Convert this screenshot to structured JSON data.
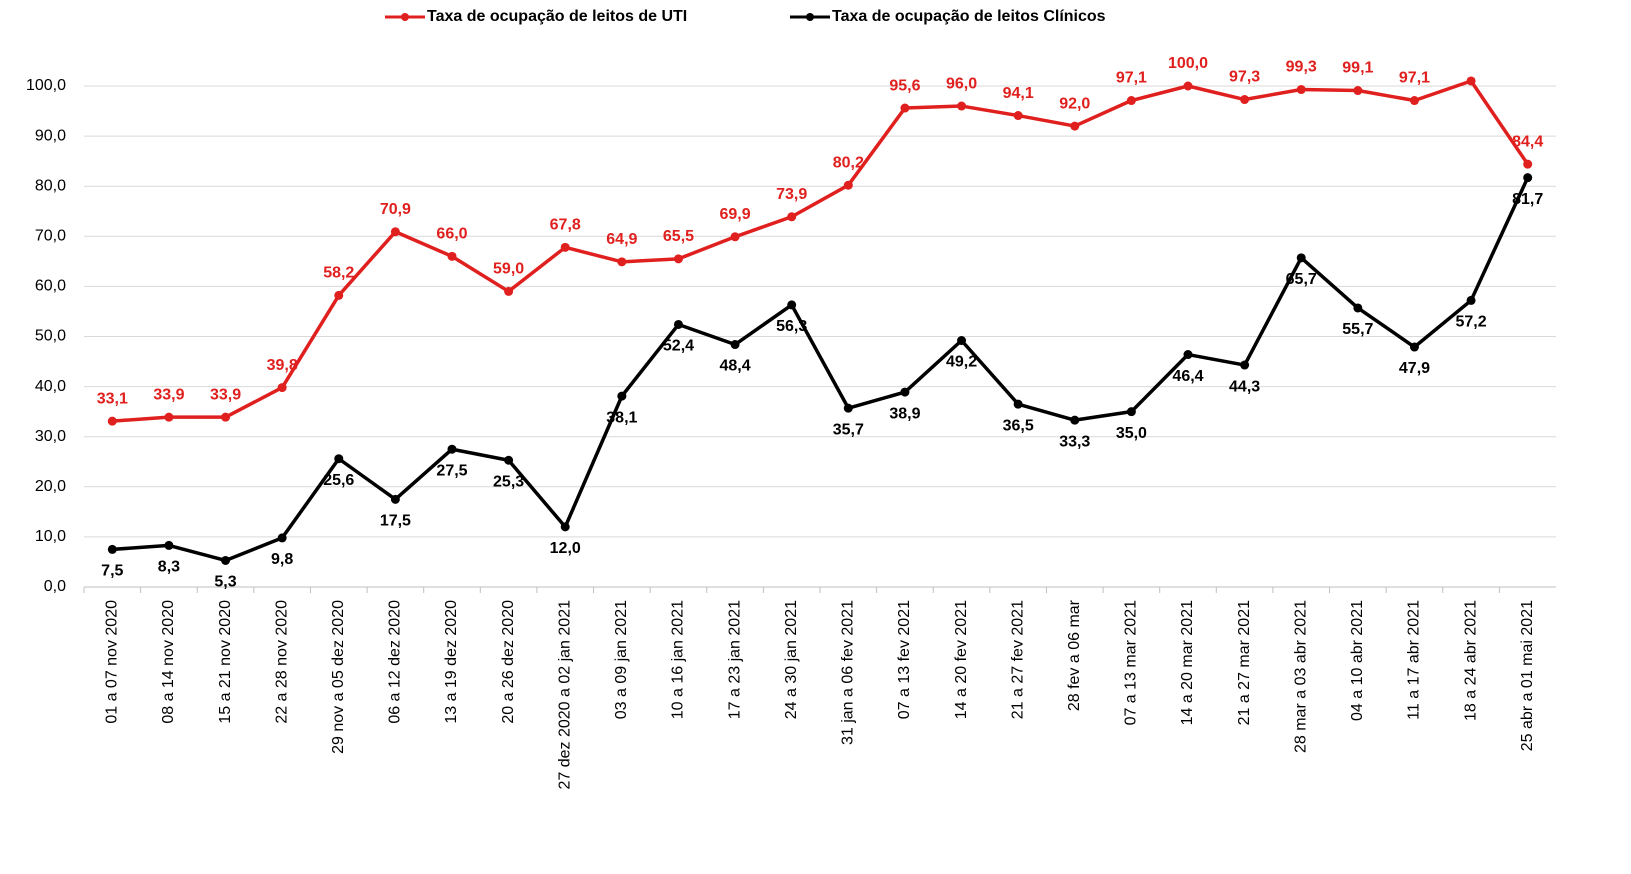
{
  "chart_data": {
    "type": "line",
    "categories": [
      "01 a 07 nov 2020",
      "08 a 14 nov 2020",
      "15 a 21 nov 2020",
      "22 a 28 nov 2020",
      "29 nov a 05 dez 2020",
      "06 a 12 dez 2020",
      "13 a 19 dez 2020",
      "20 a 26 dez 2020",
      "27 dez 2020 a 02 jan 2021",
      "03 a 09 jan 2021",
      "10 a 16 jan 2021",
      "17 a 23 jan 2021",
      "24 a 30 jan 2021",
      "31 jan a 06 fev 2021",
      "07 a 13 fev 2021",
      "14 a 20 fev 2021",
      "21 a 27 fev 2021",
      "28 fev a 06 mar",
      "07 a 13 mar 2021",
      "14 a 20 mar 2021",
      "21 a 27 mar 2021",
      "28 mar a 03 abr 2021",
      "04 a 10 abr 2021",
      "11 a 17 abr 2021",
      "18 a 24 abr 2021",
      "25 abr a 01 mai 2021"
    ],
    "series": [
      {
        "name": "Taxa de ocupação de leitos de UTI",
        "color": "#e0201e",
        "values": [
          33.1,
          33.9,
          33.9,
          39.8,
          58.2,
          70.9,
          66.0,
          59.0,
          67.8,
          64.9,
          65.5,
          69.9,
          73.9,
          80.2,
          95.6,
          96.0,
          94.1,
          92.0,
          97.1,
          100.0,
          97.3,
          99.3,
          99.1,
          97.1,
          101.0,
          84.4
        ],
        "value_labels": [
          "33,1",
          "33,9",
          "33,9",
          "39,8",
          "58,2",
          "70,9",
          "66,0",
          "59,0",
          "67,8",
          "64,9",
          "65,5",
          "69,9",
          "73,9",
          "80,2",
          "95,6",
          "96,0",
          "94,1",
          "92,0",
          "97,1",
          "100,0",
          "97,3",
          "99,3",
          "99,1",
          "97,1",
          null,
          "84,4"
        ]
      },
      {
        "name": "Taxa de ocupação de leitos Clínicos",
        "color": "#000000",
        "values": [
          7.5,
          8.3,
          5.3,
          9.8,
          25.6,
          17.5,
          27.5,
          25.3,
          12.0,
          38.1,
          52.4,
          48.4,
          56.3,
          35.7,
          38.9,
          49.2,
          36.5,
          33.3,
          35.0,
          46.4,
          44.3,
          65.7,
          55.7,
          47.9,
          57.2,
          81.7
        ],
        "value_labels": [
          "7,5",
          "8,3",
          "5,3",
          "9,8",
          "25,6",
          "17,5",
          "27,5",
          "25,3",
          "12,0",
          "38,1",
          "52,4",
          "48,4",
          "56,3",
          "35,7",
          "38,9",
          "49,2",
          "36,5",
          "33,3",
          "35,0",
          "46,4",
          "44,3",
          "65,7",
          "55,7",
          "47,9",
          "57,2",
          "81,7"
        ]
      }
    ],
    "ylim": [
      0,
      100
    ],
    "yticks": [
      {
        "value": 0,
        "label": "0,0"
      },
      {
        "value": 10,
        "label": "10,0"
      },
      {
        "value": 20,
        "label": "20,0"
      },
      {
        "value": 30,
        "label": "30,0"
      },
      {
        "value": 40,
        "label": "40,0"
      },
      {
        "value": 50,
        "label": "50,0"
      },
      {
        "value": 60,
        "label": "60,0"
      },
      {
        "value": 70,
        "label": "70,0"
      },
      {
        "value": 80,
        "label": "80,0"
      },
      {
        "value": 90,
        "label": "90,0"
      },
      {
        "value": 100,
        "label": "100,0"
      }
    ],
    "grid": true,
    "legend": "top"
  }
}
